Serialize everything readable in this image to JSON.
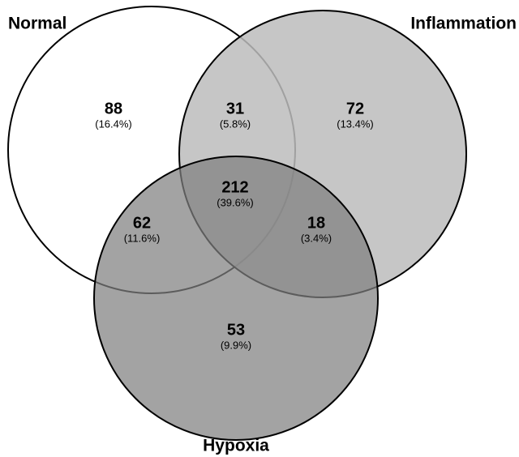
{
  "chart_data": {
    "type": "venn",
    "sets": [
      {
        "name": "Normal",
        "color": "#ffffff"
      },
      {
        "name": "Inflammation",
        "color": "#bcbcbc"
      },
      {
        "name": "Hypoxia",
        "color": "#808080"
      }
    ],
    "regions": [
      {
        "sets": [
          "Normal"
        ],
        "value": 88,
        "percent": "(16.4%)"
      },
      {
        "sets": [
          "Normal",
          "Inflammation"
        ],
        "value": 31,
        "percent": "(5.8%)"
      },
      {
        "sets": [
          "Inflammation"
        ],
        "value": 72,
        "percent": "(13.4%)"
      },
      {
        "sets": [
          "Normal",
          "Inflammation",
          "Hypoxia"
        ],
        "value": 212,
        "percent": "(39.6%)"
      },
      {
        "sets": [
          "Normal",
          "Hypoxia"
        ],
        "value": 62,
        "percent": "(11.6%)"
      },
      {
        "sets": [
          "Inflammation",
          "Hypoxia"
        ],
        "value": 18,
        "percent": "(3.4%)"
      },
      {
        "sets": [
          "Hypoxia"
        ],
        "value": 53,
        "percent": "(9.9%)"
      }
    ]
  }
}
